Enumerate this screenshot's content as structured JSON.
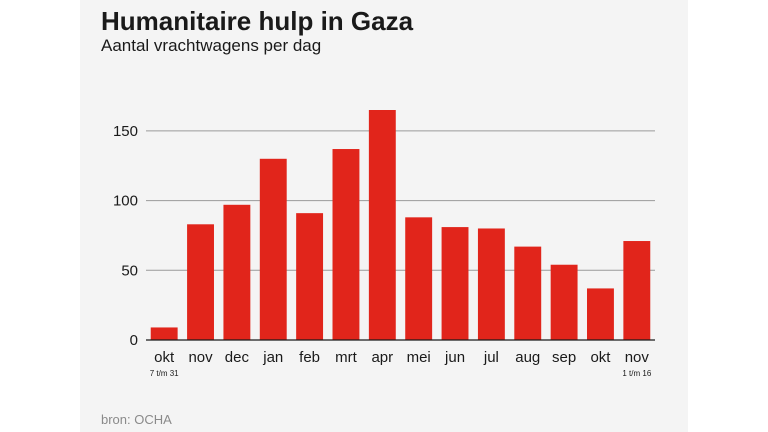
{
  "header": {
    "title": "Humanitaire hulp in Gaza",
    "subtitle": "Aantal vrachtwagens per dag"
  },
  "footer": {
    "source": "bron: OCHA"
  },
  "chart_data": {
    "type": "bar",
    "title": "Humanitaire hulp in Gaza",
    "subtitle": "Aantal vrachtwagens per dag",
    "xlabel": "",
    "ylabel": "",
    "categories": [
      "okt",
      "nov",
      "dec",
      "jan",
      "feb",
      "mrt",
      "apr",
      "mei",
      "jun",
      "jul",
      "aug",
      "sep",
      "okt",
      "nov"
    ],
    "category_sublabels": [
      "7 t/m 31",
      "",
      "",
      "",
      "",
      "",
      "",
      "",
      "",
      "",
      "",
      "",
      "",
      "1 t/m 16"
    ],
    "values": [
      9,
      83,
      97,
      130,
      91,
      137,
      165,
      88,
      81,
      80,
      67,
      54,
      37,
      71
    ],
    "ylim": [
      0,
      165
    ],
    "yticks": [
      0,
      50,
      100,
      150
    ],
    "ytick_labels": [
      "0",
      "50",
      "100",
      "150"
    ],
    "grid": true,
    "legend": "none",
    "colors": {
      "bar": "#e1251b",
      "grid": "#9a9a9a",
      "axis": "#1a1a1a",
      "background": "#f4f4f4"
    }
  }
}
